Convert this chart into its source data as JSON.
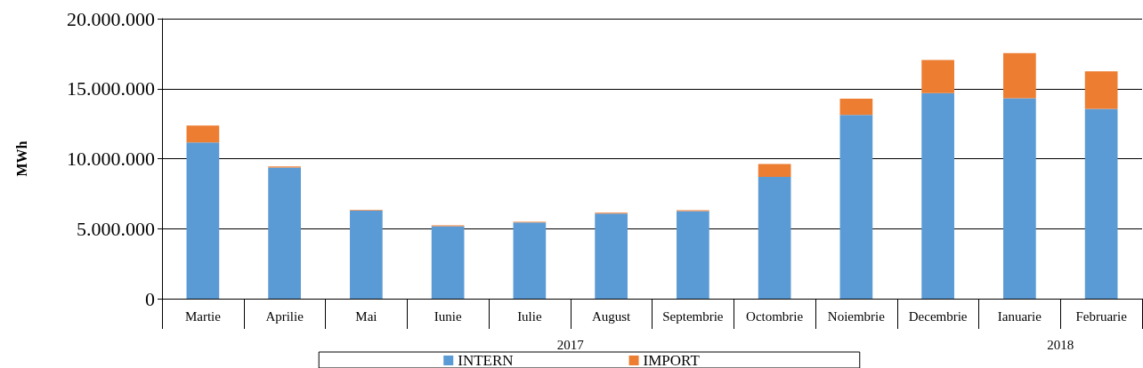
{
  "chart_data": {
    "type": "bar",
    "ylabel": "MWh",
    "stacked": true,
    "grid": "y",
    "legend": "bottom",
    "categories": [
      "Martie",
      "Aprilie",
      "Mai",
      "Iunie",
      "Iulie",
      "August",
      "Septembrie",
      "Octombrie",
      "Noiembrie",
      "Decembrie",
      "Ianuarie",
      "Februarie"
    ],
    "series": [
      {
        "name": "INTERN",
        "color": "#5b9bd5",
        "values": [
          11160000,
          9370000,
          6280000,
          5170000,
          5440000,
          6080000,
          6250000,
          8700000,
          13120000,
          14690000,
          14310000,
          13550000
        ]
      },
      {
        "name": "IMPORT",
        "color": "#ed7d31",
        "values": [
          1210000,
          80000,
          60000,
          70000,
          60000,
          60000,
          60000,
          920000,
          1170000,
          2360000,
          3230000,
          2690000
        ]
      }
    ],
    "ylim": [
      0,
      20000000
    ],
    "yticks": [
      0,
      {
        "value": 5000000,
        "label": "5.000.000"
      },
      {
        "value": 10000000,
        "label": "10.000.000"
      },
      {
        "value": 15000000,
        "label": "15.000.000"
      },
      {
        "value": 20000000,
        "label": "20.000.000"
      }
    ],
    "annotations": [
      "2017",
      "2018"
    ]
  }
}
